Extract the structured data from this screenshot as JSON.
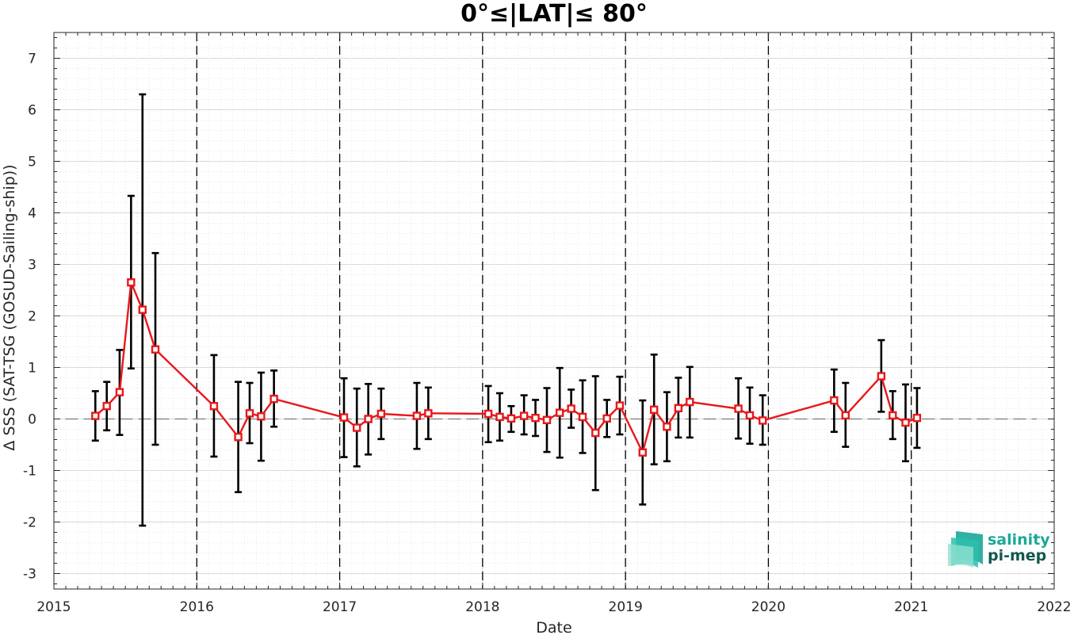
{
  "chart_data": {
    "type": "line",
    "title": "0°≤|LAT|≤ 80°",
    "xlabel": "Date",
    "ylabel": "Δ SSS (SAT-TSG (GOSUD-Sailing-ship))",
    "xlim": [
      2015,
      2022
    ],
    "ylim": [
      -3.3,
      7.5
    ],
    "xticks": [
      "2015",
      "2016",
      "2017",
      "2018",
      "2019",
      "2020",
      "2021",
      "2022"
    ],
    "yticks": [
      "-3",
      "-2",
      "-1",
      "0",
      "1",
      "2",
      "3",
      "4",
      "5",
      "6",
      "7"
    ],
    "grid": true,
    "zero_line": 0,
    "year_boundaries": [
      2016,
      2017,
      2018,
      2019,
      2020,
      2021
    ],
    "series": [
      {
        "color": "#e8181b",
        "marker": "square",
        "points": [
          {
            "x": 2015.29,
            "y": 0.06,
            "err_low": -0.42,
            "err_high": 0.54
          },
          {
            "x": 2015.37,
            "y": 0.25,
            "err_low": -0.22,
            "err_high": 0.72
          },
          {
            "x": 2015.46,
            "y": 0.52,
            "err_low": -0.31,
            "err_high": 1.34
          },
          {
            "x": 2015.54,
            "y": 2.65,
            "err_low": 0.98,
            "err_high": 4.33
          },
          {
            "x": 2015.62,
            "y": 2.12,
            "err_low": -2.07,
            "err_high": 6.3
          },
          {
            "x": 2015.71,
            "y": 1.35,
            "err_low": -0.5,
            "err_high": 3.22
          },
          {
            "x": 2016.12,
            "y": 0.25,
            "err_low": -0.73,
            "err_high": 1.24
          },
          {
            "x": 2016.29,
            "y": -0.35,
            "err_low": -1.42,
            "err_high": 0.72
          },
          {
            "x": 2016.37,
            "y": 0.11,
            "err_low": -0.47,
            "err_high": 0.7
          },
          {
            "x": 2016.45,
            "y": 0.05,
            "err_low": -0.81,
            "err_high": 0.9
          },
          {
            "x": 2016.54,
            "y": 0.39,
            "err_low": -0.15,
            "err_high": 0.94
          },
          {
            "x": 2017.03,
            "y": 0.03,
            "err_low": -0.74,
            "err_high": 0.79
          },
          {
            "x": 2017.12,
            "y": -0.17,
            "err_low": -0.92,
            "err_high": 0.59
          },
          {
            "x": 2017.2,
            "y": 0.0,
            "err_low": -0.69,
            "err_high": 0.68
          },
          {
            "x": 2017.29,
            "y": 0.1,
            "err_low": -0.39,
            "err_high": 0.59
          },
          {
            "x": 2017.54,
            "y": 0.06,
            "err_low": -0.58,
            "err_high": 0.7
          },
          {
            "x": 2017.62,
            "y": 0.11,
            "err_low": -0.39,
            "err_high": 0.61
          },
          {
            "x": 2018.04,
            "y": 0.1,
            "err_low": -0.45,
            "err_high": 0.64
          },
          {
            "x": 2018.12,
            "y": 0.04,
            "err_low": -0.42,
            "err_high": 0.5
          },
          {
            "x": 2018.2,
            "y": 0.01,
            "err_low": -0.25,
            "err_high": 0.25
          },
          {
            "x": 2018.29,
            "y": 0.06,
            "err_low": -0.3,
            "err_high": 0.46
          },
          {
            "x": 2018.37,
            "y": 0.02,
            "err_low": -0.33,
            "err_high": 0.37
          },
          {
            "x": 2018.45,
            "y": -0.02,
            "err_low": -0.64,
            "err_high": 0.6
          },
          {
            "x": 2018.54,
            "y": 0.12,
            "err_low": -0.75,
            "err_high": 0.99
          },
          {
            "x": 2018.62,
            "y": 0.2,
            "err_low": -0.17,
            "err_high": 0.57
          },
          {
            "x": 2018.7,
            "y": 0.04,
            "err_low": -0.66,
            "err_high": 0.75
          },
          {
            "x": 2018.79,
            "y": -0.27,
            "err_low": -1.38,
            "err_high": 0.83
          },
          {
            "x": 2018.87,
            "y": 0.01,
            "err_low": -0.35,
            "err_high": 0.37
          },
          {
            "x": 2018.96,
            "y": 0.26,
            "err_low": -0.3,
            "err_high": 0.82
          },
          {
            "x": 2019.12,
            "y": -0.65,
            "err_low": -1.66,
            "err_high": 0.36
          },
          {
            "x": 2019.2,
            "y": 0.18,
            "err_low": -0.88,
            "err_high": 1.25
          },
          {
            "x": 2019.29,
            "y": -0.15,
            "err_low": -0.82,
            "err_high": 0.52
          },
          {
            "x": 2019.37,
            "y": 0.21,
            "err_low": -0.36,
            "err_high": 0.8
          },
          {
            "x": 2019.45,
            "y": 0.33,
            "err_low": -0.36,
            "err_high": 1.01
          },
          {
            "x": 2019.79,
            "y": 0.2,
            "err_low": -0.38,
            "err_high": 0.79
          },
          {
            "x": 2019.87,
            "y": 0.07,
            "err_low": -0.48,
            "err_high": 0.61
          },
          {
            "x": 2019.96,
            "y": -0.03,
            "err_low": -0.5,
            "err_high": 0.46
          },
          {
            "x": 2020.46,
            "y": 0.36,
            "err_low": -0.25,
            "err_high": 0.96
          },
          {
            "x": 2020.54,
            "y": 0.07,
            "err_low": -0.54,
            "err_high": 0.7
          },
          {
            "x": 2020.79,
            "y": 0.83,
            "err_low": 0.14,
            "err_high": 1.53
          },
          {
            "x": 2020.87,
            "y": 0.07,
            "err_low": -0.39,
            "err_high": 0.54
          },
          {
            "x": 2020.96,
            "y": -0.07,
            "err_low": -0.82,
            "err_high": 0.67
          },
          {
            "x": 2021.04,
            "y": 0.02,
            "err_low": -0.56,
            "err_high": 0.6
          }
        ]
      }
    ]
  },
  "logo": {
    "line1": "salinity",
    "line2": "pi-mep"
  },
  "colors": {
    "series": "#e8181b",
    "errorbar": "#000000",
    "logo_teal": "#1aa89a",
    "logo_dark": "#12574f"
  }
}
